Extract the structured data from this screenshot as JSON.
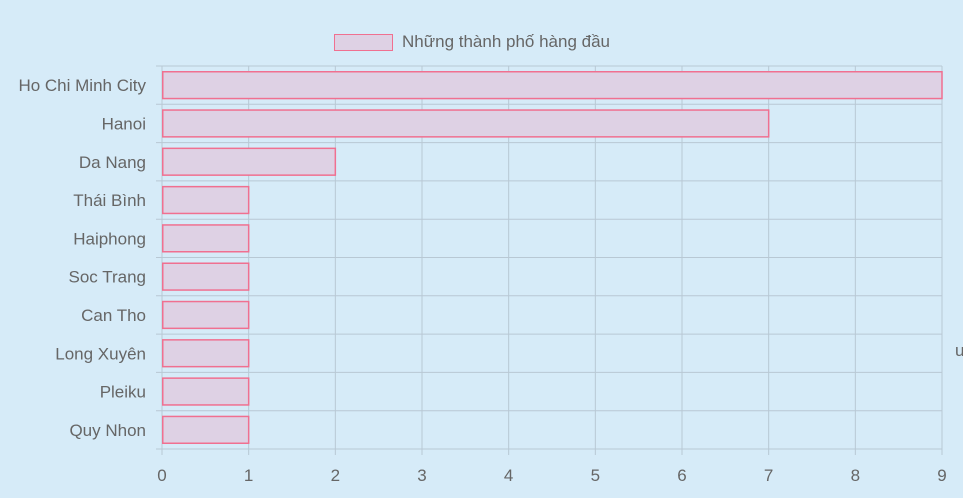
{
  "colors": {
    "background": "#d6ebf8",
    "bar_fill": "#ded1e4",
    "bar_border": "#f07090",
    "grid": "#b8c8d4",
    "text": "#666666"
  },
  "chart_data": {
    "type": "bar",
    "orientation": "horizontal",
    "categories": [
      "Ho Chi Minh City",
      "Hanoi",
      "Da Nang",
      "Thái Bình",
      "Haiphong",
      "Soc Trang",
      "Can Tho",
      "Long Xuyên",
      "Pleiku",
      "Quy Nhon"
    ],
    "series": [
      {
        "name": "Những thành phố hàng đầu",
        "values": [
          9,
          7,
          2,
          1,
          1,
          1,
          1,
          1,
          1,
          1
        ]
      }
    ],
    "xlim": [
      0,
      9
    ],
    "xticks": [
      "0",
      "1",
      "2",
      "3",
      "4",
      "5",
      "6",
      "7",
      "8",
      "9"
    ],
    "grid": true,
    "legend": "top-center"
  },
  "edge_text": "u"
}
